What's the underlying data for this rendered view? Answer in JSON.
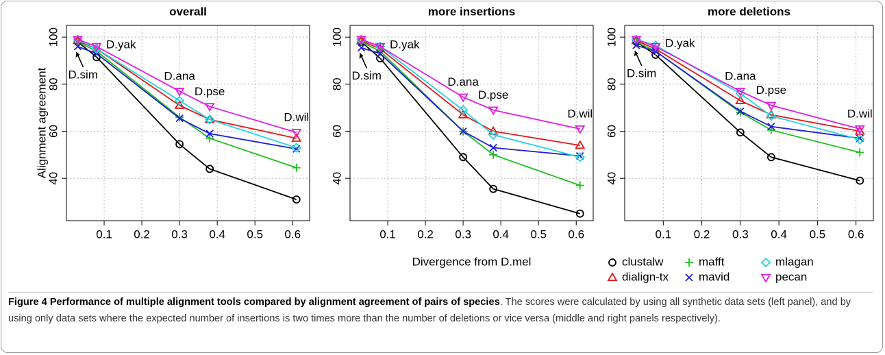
{
  "chart_data": [
    {
      "type": "line",
      "title": "overall",
      "y_label": "Alignment agreement",
      "x": [
        0.03,
        0.08,
        0.3,
        0.38,
        0.61
      ],
      "xlim": [
        0,
        0.645
      ],
      "xticks": [
        0.1,
        0.2,
        0.3,
        0.4,
        0.5,
        0.6
      ],
      "ylim": [
        22,
        105
      ],
      "yticks": [
        40,
        60,
        80,
        100
      ],
      "grid": true,
      "annotations": [
        "D.sim",
        "D.yak",
        "D.ana",
        "D.pse",
        "D.wil"
      ],
      "series": [
        {
          "color": "#000000",
          "marker": "circle",
          "values": [
            98,
            91.5,
            54.5,
            44,
            31
          ]
        },
        {
          "color": "#e41a1c",
          "marker": "triangle-up",
          "values": [
            98.5,
            95,
            71,
            65,
            57
          ]
        },
        {
          "color": "#1fbf1f",
          "marker": "plus",
          "values": [
            98,
            94,
            66,
            57,
            44.5
          ]
        },
        {
          "color": "#1f1fd6",
          "marker": "cross",
          "values": [
            96,
            93,
            65.5,
            59,
            52.5
          ]
        },
        {
          "color": "#1fd6e0",
          "marker": "diamond",
          "values": [
            99,
            95,
            73,
            65,
            53
          ]
        },
        {
          "color": "#e01fe0",
          "marker": "triangle-down",
          "values": [
            99,
            96,
            77,
            70.5,
            59.5
          ]
        }
      ]
    },
    {
      "type": "line",
      "title": "more insertions",
      "x_label": "Divergence from D.mel",
      "x": [
        0.03,
        0.08,
        0.3,
        0.38,
        0.61
      ],
      "xlim": [
        0,
        0.645
      ],
      "xticks": [
        0.1,
        0.2,
        0.3,
        0.4,
        0.5,
        0.6
      ],
      "ylim": [
        22,
        105
      ],
      "yticks": [
        40,
        60,
        80,
        100
      ],
      "grid": true,
      "annotations": [
        "D.sim",
        "D.yak",
        "D.ana",
        "D.pse",
        "D.wil"
      ],
      "series": [
        {
          "color": "#000000",
          "marker": "circle",
          "values": [
            98,
            91,
            49,
            35.5,
            25
          ]
        },
        {
          "color": "#e41a1c",
          "marker": "triangle-up",
          "values": [
            98.5,
            95,
            67,
            60,
            54
          ]
        },
        {
          "color": "#1fbf1f",
          "marker": "plus",
          "values": [
            98,
            94,
            60,
            50,
            37
          ]
        },
        {
          "color": "#1f1fd6",
          "marker": "cross",
          "values": [
            95.5,
            93,
            60,
            53,
            49.5
          ]
        },
        {
          "color": "#1fd6e0",
          "marker": "diamond",
          "values": [
            99,
            96,
            69,
            58.5,
            49
          ]
        },
        {
          "color": "#e01fe0",
          "marker": "triangle-down",
          "values": [
            99,
            96,
            74.5,
            69,
            61
          ]
        }
      ]
    },
    {
      "type": "line",
      "title": "more deletions",
      "x": [
        0.03,
        0.08,
        0.3,
        0.38,
        0.61
      ],
      "xlim": [
        0,
        0.645
      ],
      "xticks": [
        0.1,
        0.2,
        0.3,
        0.4,
        0.5,
        0.6
      ],
      "ylim": [
        22,
        105
      ],
      "yticks": [
        40,
        60,
        80,
        100
      ],
      "grid": true,
      "legend": "below",
      "annotations": [
        "D.sim",
        "D.yak",
        "D.ana",
        "D.pse",
        "D.wil"
      ],
      "series": [
        {
          "name": "clustalw",
          "color": "#000000",
          "marker": "circle",
          "values": [
            98,
            92.5,
            59.5,
            49,
            39
          ]
        },
        {
          "name": "dialign-tx",
          "color": "#e41a1c",
          "marker": "triangle-up",
          "values": [
            98.5,
            95,
            73,
            67,
            60
          ]
        },
        {
          "name": "mafft",
          "color": "#1fbf1f",
          "marker": "plus",
          "values": [
            98,
            94,
            68,
            60.5,
            51
          ]
        },
        {
          "name": "mavid",
          "color": "#1f1fd6",
          "marker": "cross",
          "values": [
            96.5,
            94,
            68.5,
            62,
            57
          ]
        },
        {
          "name": "mlagan",
          "color": "#1fd6e0",
          "marker": "diamond",
          "values": [
            99,
            96.5,
            76,
            66.5,
            56.5
          ]
        },
        {
          "name": "pecan",
          "color": "#e01fe0",
          "marker": "triangle-down",
          "values": [
            99,
            96,
            77,
            71,
            61
          ]
        }
      ]
    }
  ],
  "caption": {
    "label": "Figure 4",
    "title": "Performance of multiple alignment tools compared by alignment agreement of pairs of species",
    "text": ". The scores were calculated by using all synthetic data sets (left panel), and by using only data sets where the expected number of insertions is two times more than the number of deletions or vice versa (middle and right panels respectively)."
  }
}
